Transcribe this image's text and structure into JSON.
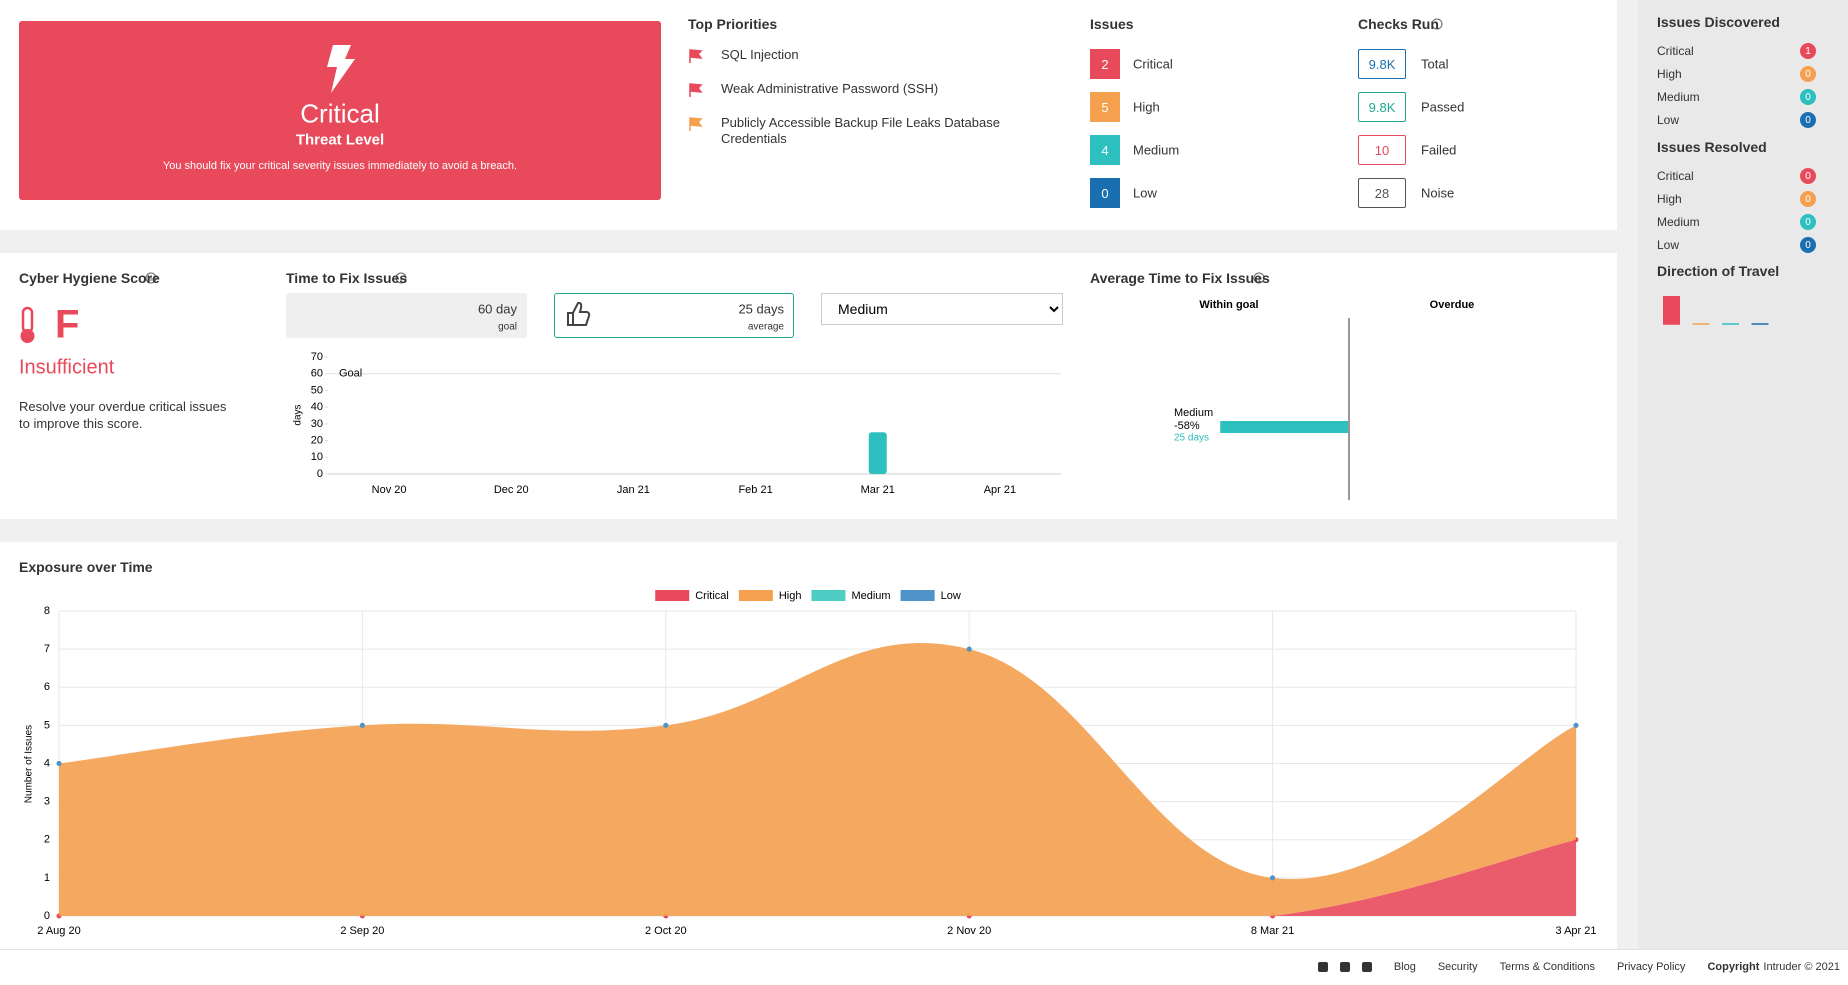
{
  "threat": {
    "level": "Critical",
    "label": "Threat Level",
    "message": "You should fix your critical severity issues immediately to avoid a breach."
  },
  "top_priorities": {
    "title": "Top Priorities",
    "items": [
      {
        "text": "SQL Injection",
        "color": "#e8495b"
      },
      {
        "text": "Weak Administrative Password (SSH)",
        "color": "#e8495b"
      },
      {
        "text": "Publicly Accessible Backup File Leaks Database Credentials",
        "color": "#f4a04f"
      }
    ]
  },
  "issues": {
    "title": "Issues",
    "rows": [
      {
        "count": 2,
        "label": "Critical",
        "color": "#e8495b"
      },
      {
        "count": 5,
        "label": "High",
        "color": "#f4a04f"
      },
      {
        "count": 4,
        "label": "Medium",
        "color": "#2ebfbf"
      },
      {
        "count": 0,
        "label": "Low",
        "color": "#1a6fb0"
      }
    ]
  },
  "checks_run": {
    "title": "Checks Run",
    "rows": [
      {
        "value": "9.8K",
        "label": "Total",
        "color": "#1a6fb0"
      },
      {
        "value": "9.8K",
        "label": "Passed",
        "color": "#1fa88f"
      },
      {
        "value": 10,
        "label": "Failed",
        "color": "#e8495b"
      },
      {
        "value": 28,
        "label": "Noise",
        "color": "#555555"
      }
    ]
  },
  "sidebar": {
    "discovered": {
      "title": "Issues Discovered",
      "rows": [
        {
          "label": "Critical",
          "count": 1,
          "color": "#e8495b"
        },
        {
          "label": "High",
          "count": 0,
          "color": "#f4a04f"
        },
        {
          "label": "Medium",
          "count": 0,
          "color": "#2ebfbf"
        },
        {
          "label": "Low",
          "count": 0,
          "color": "#1a6fb0"
        }
      ]
    },
    "resolved": {
      "title": "Issues Resolved",
      "rows": [
        {
          "label": "Critical",
          "count": 0,
          "color": "#e8495b"
        },
        {
          "label": "High",
          "count": 0,
          "color": "#f4a04f"
        },
        {
          "label": "Medium",
          "count": 0,
          "color": "#2ebfbf"
        },
        {
          "label": "Low",
          "count": 0,
          "color": "#1a6fb0"
        }
      ]
    }
  },
  "hygiene": {
    "title": "Cyber Hygiene Score",
    "grade": "F",
    "status": "Insufficient",
    "message": "Resolve your overdue critical issues to improve this score."
  },
  "time_to_fix": {
    "goal": {
      "value": "60 day",
      "label": "goal"
    },
    "average": {
      "value": "25 days",
      "label": "average"
    },
    "severity": "Medium"
  },
  "chart_data": [
    {
      "type": "bar",
      "title": "Time to Fix Issues",
      "ylabel": "days",
      "categories": [
        "Nov 20",
        "Dec 20",
        "Jan 21",
        "Feb 21",
        "Mar 21",
        "Apr 21"
      ],
      "values": [
        null,
        null,
        null,
        null,
        25,
        null
      ],
      "color": "#2ebfbf",
      "ylim": [
        0,
        70
      ],
      "yticks": [
        0,
        10,
        20,
        30,
        40,
        50,
        60,
        70
      ],
      "goal": 60,
      "goal_label": "Goal",
      "grid": false
    },
    {
      "type": "hbar",
      "title": "Average Time to Fix Issues",
      "within_goal": "Within goal",
      "overdue": "Overdue",
      "categories": [
        "Medium"
      ],
      "values": [
        -58
      ],
      "value_labels": [
        "-58%"
      ],
      "days_labels": [
        "25 days"
      ],
      "color": "#2ebfbf",
      "xlim": [
        -100,
        100
      ]
    },
    {
      "type": "area",
      "stacked": true,
      "title": "Exposure over Time",
      "ylabel": "Number of Issues",
      "x": [
        "2 Aug 20",
        "2 Sep 20",
        "2 Oct 20",
        "2 Nov 20",
        "8 Mar 21",
        "3 Apr 21"
      ],
      "series": [
        {
          "name": "Critical",
          "color": "#e8495b",
          "values": [
            0,
            0,
            0,
            0,
            0,
            2
          ]
        },
        {
          "name": "High",
          "color": "#f4a04f",
          "values": [
            4,
            5,
            5,
            7,
            1,
            3
          ]
        },
        {
          "name": "Medium",
          "color": "#4ecdc4",
          "values": [
            0,
            0,
            0,
            0,
            0,
            0
          ]
        },
        {
          "name": "Low",
          "color": "#4f93c9",
          "values": [
            0,
            0,
            0,
            0,
            0,
            0
          ]
        }
      ],
      "ylim": [
        0,
        8
      ],
      "yticks": [
        0,
        1,
        2,
        3,
        4,
        5,
        6,
        7,
        8
      ],
      "grid": true,
      "legend": "top"
    },
    {
      "type": "mini",
      "title": "Direction of Travel",
      "categories": [
        null,
        null,
        null,
        null
      ],
      "values": [
        1,
        0,
        0,
        0
      ],
      "colors": [
        "#e8495b",
        "#f4a04f",
        "#2ebfbf",
        "#1a6fb0"
      ],
      "ylim": [
        0,
        1
      ]
    }
  ],
  "footer": {
    "links": [
      "Blog",
      "Security",
      "Terms & Conditions",
      "Privacy Policy"
    ],
    "copyright": "Copyright",
    "owner": "Intruder © 2021"
  }
}
